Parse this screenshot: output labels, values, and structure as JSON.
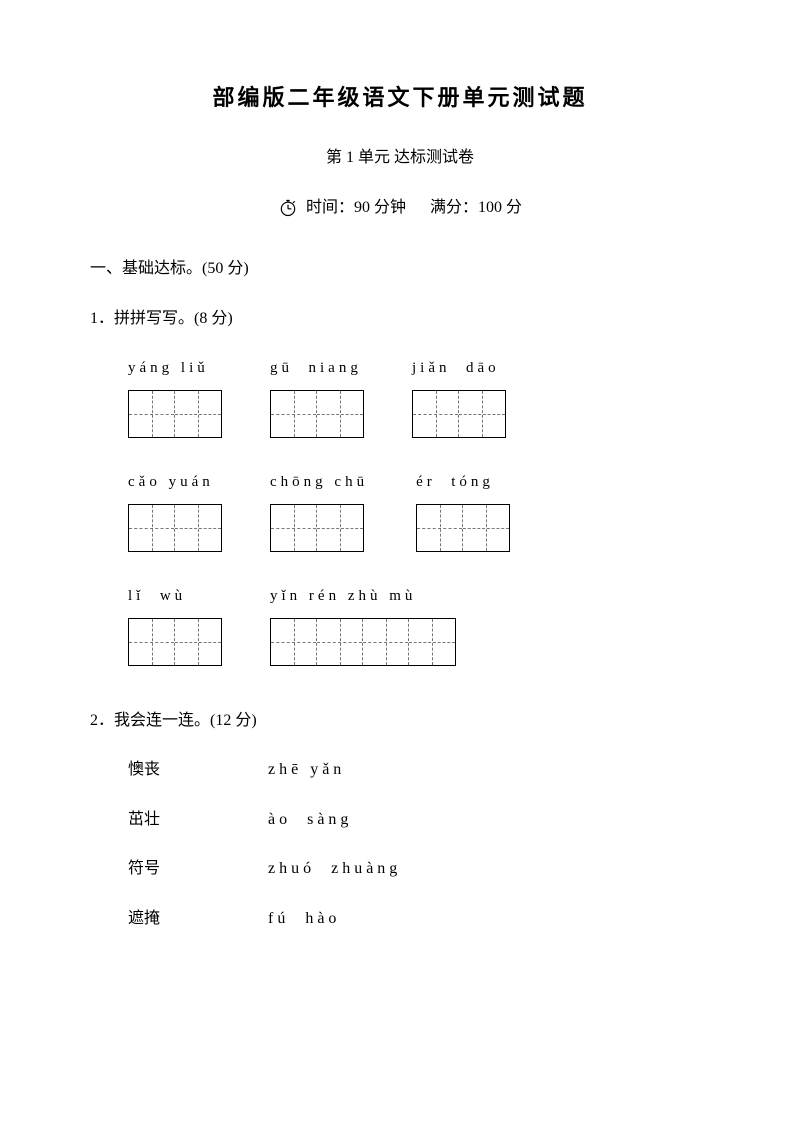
{
  "title": "部编版二年级语文下册单元测试题",
  "subtitle": "第 1 单元 达标测试卷",
  "meta": {
    "time": "时间：90 分钟",
    "score": "满分：100 分"
  },
  "section1": "一、基础达标。(50 分)",
  "q1": {
    "heading": "1．拼拼写写。(8 分)",
    "rows": [
      [
        {
          "pinyin": "yáng liǔ",
          "cells": 2
        },
        {
          "pinyin": "gū  niang",
          "cells": 2
        },
        {
          "pinyin": "jiǎn  dāo",
          "cells": 2
        }
      ],
      [
        {
          "pinyin": "cǎo yuán",
          "cells": 2
        },
        {
          "pinyin": "chōng chū",
          "cells": 2
        },
        {
          "pinyin": "ér  tóng",
          "cells": 2
        }
      ],
      [
        {
          "pinyin": "lǐ  wù",
          "cells": 2
        },
        {
          "pinyin": "yǐn rén zhù mù",
          "cells": 4
        }
      ]
    ]
  },
  "q2": {
    "heading": "2．我会连一连。(12 分)",
    "pairs": [
      {
        "hanzi": "懊丧",
        "pinyin": "zhē yǎn"
      },
      {
        "hanzi": "茁壮",
        "pinyin": "ào  sàng"
      },
      {
        "hanzi": "符号",
        "pinyin": "zhuó  zhuàng"
      },
      {
        "hanzi": "遮掩",
        "pinyin": "fú  hào"
      }
    ]
  },
  "colors": {
    "text": "#000000",
    "bg": "#ffffff",
    "dash": "#777777"
  }
}
